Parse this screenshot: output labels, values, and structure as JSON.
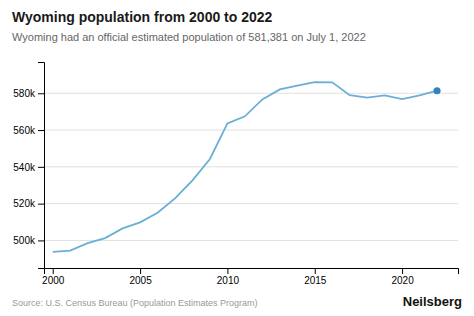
{
  "chart_data": {
    "type": "line",
    "title": "Wyoming population from 2000 to 2022",
    "subtitle": "Wyoming had an official estimated population of 581,381 on July 1, 2022",
    "annotations": [
      "Source: U.S. Census Bureau (Population Estimates Program)",
      "Neilsberg"
    ],
    "x": [
      2000,
      2001,
      2002,
      2003,
      2004,
      2005,
      2006,
      2007,
      2008,
      2009,
      2010,
      2011,
      2012,
      2013,
      2014,
      2015,
      2016,
      2017,
      2018,
      2019,
      2020,
      2021,
      2022
    ],
    "series": [
      {
        "type": "line",
        "color": "#6baed6",
        "values": [
          493782,
          494423,
          498560,
          501242,
          506529,
          509786,
          515004,
          522830,
          532668,
          544270,
          563626,
          567481,
          576626,
          582082,
          584157,
          586107,
          585910,
          578931,
          577601,
          578803,
          576851,
          578803,
          581381
        ]
      },
      {
        "type": "scatter",
        "marker": "circle",
        "color": "#3182bd",
        "values": [
          null,
          null,
          null,
          null,
          null,
          null,
          null,
          null,
          null,
          null,
          null,
          null,
          null,
          null,
          null,
          null,
          null,
          null,
          null,
          null,
          null,
          null,
          581381
        ]
      }
    ],
    "xlim": [
      1999.5,
      2023.2
    ],
    "ylim": [
      485000,
      597000
    ],
    "xticks": [
      2000,
      2005,
      2010,
      2015,
      2020
    ],
    "yticks": [
      {
        "value": 500000,
        "label": "500k"
      },
      {
        "value": 520000,
        "label": "520k"
      },
      {
        "value": 540000,
        "label": "540k"
      },
      {
        "value": 560000,
        "label": "560k"
      },
      {
        "value": 580000,
        "label": "580k"
      }
    ],
    "grid": true
  }
}
